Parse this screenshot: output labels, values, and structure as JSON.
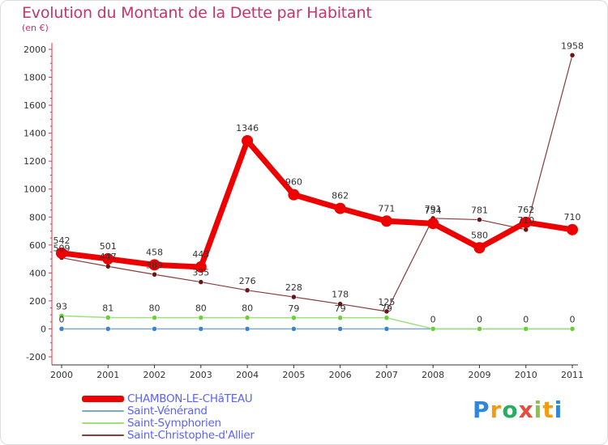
{
  "header": {
    "title": "Evolution du Montant de la Dette par Habitant",
    "subtitle": "(en €)"
  },
  "logo": {
    "text": "Proxiti",
    "letters": [
      "P",
      "r",
      "o",
      "x",
      "i",
      "t",
      "i"
    ],
    "colors": [
      "#2e86de",
      "#f39c12",
      "#27ae60",
      "#e74c3c",
      "#8bc34a",
      "#f39c12",
      "#2e86de"
    ]
  },
  "chart_data": {
    "type": "line",
    "title": "Evolution du Montant de la Dette par Habitant",
    "subtitle": "(en €)",
    "x": [
      "2000",
      "2001",
      "2002",
      "2003",
      "2004",
      "2005",
      "2006",
      "2007",
      "2008",
      "2009",
      "2010",
      "2011"
    ],
    "ylim": [
      -200,
      2000
    ],
    "yticks": [
      -200,
      0,
      200,
      400,
      600,
      800,
      1000,
      1200,
      1400,
      1600,
      1800,
      2000
    ],
    "grid": false,
    "legend_position": "bottom-left",
    "series": [
      {
        "name": "CHAMBON-LE-CHâTEAU",
        "color": "#ee0000",
        "marker": "#ee0000",
        "values": [
          542,
          501,
          458,
          443,
          1346,
          960,
          862,
          771,
          754,
          580,
          762,
          710
        ],
        "labels": [
          "542",
          "501",
          "458",
          "443",
          "1346",
          "960",
          "862",
          "771",
          "754",
          "580",
          "762",
          "710"
        ]
      },
      {
        "name": "Saint-Vénérand",
        "color": "#7aa7cf",
        "marker": "#3a85c7",
        "values": [
          0,
          0,
          0,
          0,
          0,
          0,
          0,
          0,
          0,
          0,
          0,
          0
        ],
        "labels": [
          "0",
          "",
          "",
          "",
          "",
          "",
          "",
          "",
          "0",
          "0",
          "0",
          "0"
        ]
      },
      {
        "name": "Saint-Symphorien",
        "color": "#9ee07a",
        "marker": "#6ccf3a",
        "values": [
          93,
          81,
          80,
          80,
          80,
          79,
          79,
          79,
          0,
          0,
          0,
          0
        ],
        "labels": [
          "93",
          "81",
          "80",
          "80",
          "80",
          "79",
          "79",
          "79",
          "",
          "",
          "",
          ""
        ]
      },
      {
        "name": "Saint-Christophe-d'Allier",
        "color": "#8b3a3a",
        "marker": "#6b1414",
        "values": [
          509,
          447,
          389,
          335,
          276,
          228,
          178,
          125,
          791,
          781,
          710,
          1958
        ],
        "labels": [
          "509",
          "447",
          "389",
          "335",
          "276",
          "228",
          "178",
          "125",
          "791",
          "781",
          "710",
          "1958"
        ]
      }
    ]
  }
}
